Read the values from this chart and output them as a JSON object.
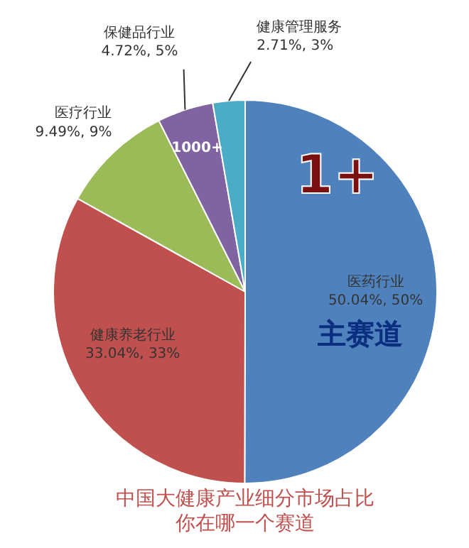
{
  "chart_data": {
    "type": "pie",
    "title": "中国大健康产业细分市场占比",
    "subtitle": "你在哪一个赛道",
    "categories": [
      "医药行业",
      "健康养老行业",
      "医疗行业",
      "保健品行业",
      "健康管理服务"
    ],
    "values": [
      50.04,
      33.04,
      9.49,
      4.72,
      2.71
    ],
    "value_labels": [
      "50.04%, 50%",
      "33.04%, 33%",
      "9.49%, 9%",
      "4.72%, 5%",
      "2.71%, 3%"
    ],
    "colors": [
      "#4f81bd",
      "#c0504d",
      "#9bbb59",
      "#8064a2",
      "#4bacc6"
    ],
    "annotations": [
      "1+",
      "1000+",
      "主赛道"
    ]
  }
}
